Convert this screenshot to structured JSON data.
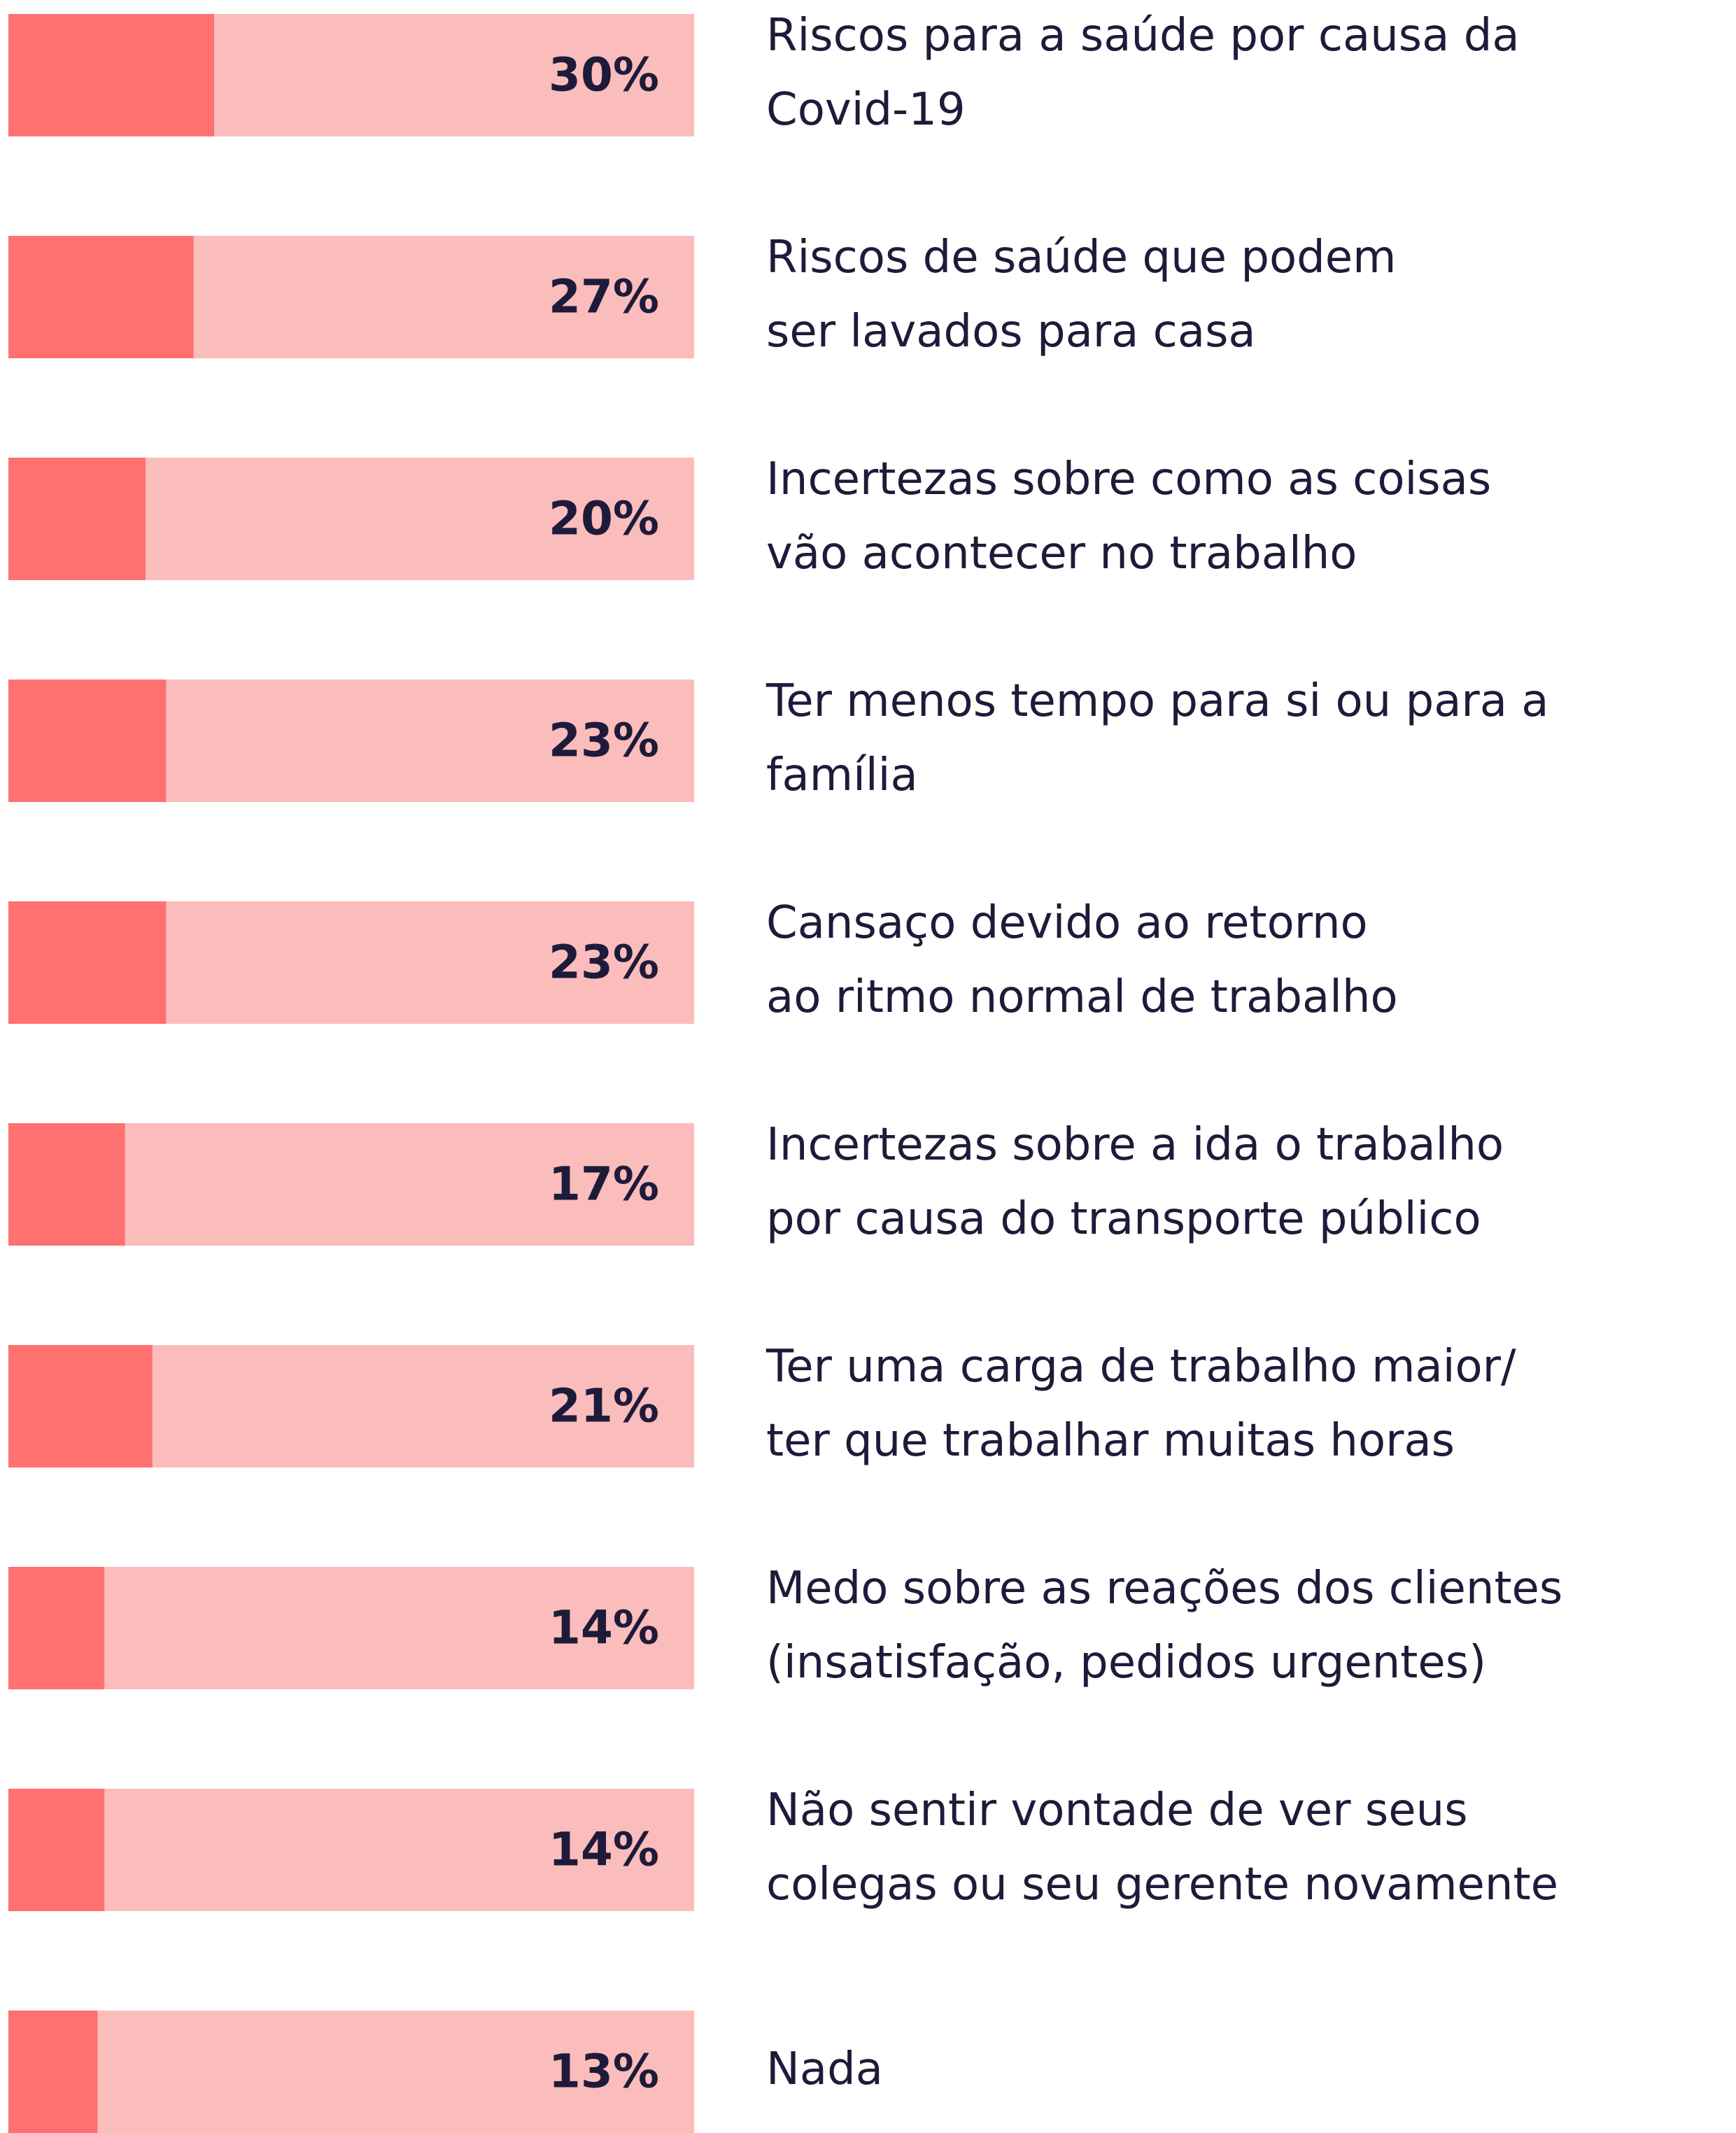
{
  "chart_data": {
    "type": "bar",
    "categories": [
      [
        "Riscos para a saúde por causa da",
        "Covid-19"
      ],
      [
        "Riscos de saúde que podem",
        "ser lavados para casa"
      ],
      [
        "Incertezas sobre como as coisas",
        "vão acontecer no trabalho"
      ],
      [
        "Ter menos tempo para si ou para a",
        "família"
      ],
      [
        "Cansaço devido ao retorno",
        "ao ritmo normal de trabalho"
      ],
      [
        "Incertezas sobre a ida o trabalho",
        "por causa do transporte público"
      ],
      [
        "Ter uma carga de trabalho maior/",
        "ter que trabalhar muitas horas"
      ],
      [
        "Medo sobre as reações dos clientes",
        "(insatisfação, pedidos urgentes)"
      ],
      [
        "Não sentir vontade de ver seus",
        "colegas ou seu gerente novamente"
      ],
      [
        "Nada"
      ]
    ],
    "values": [
      30,
      27,
      20,
      23,
      23,
      17,
      21,
      14,
      14,
      13
    ],
    "value_labels": [
      "30%",
      "27%",
      "20%",
      "23%",
      "23%",
      "17%",
      "21%",
      "14%",
      "14%",
      "13%"
    ],
    "color": "#ff7070",
    "track_color": "#fbbcbc",
    "xlim": [
      0,
      100
    ]
  }
}
